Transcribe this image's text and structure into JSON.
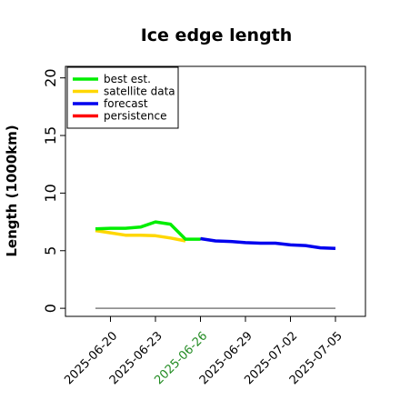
{
  "chart_data": {
    "type": "line",
    "title": "Ice edge length",
    "ylabel": "Length (1000km)",
    "xlabel": "",
    "ylim": [
      -0.7,
      21
    ],
    "yticks": [
      0,
      5,
      10,
      15,
      20
    ],
    "xlim": [
      "2025-06-17",
      "2025-07-07"
    ],
    "xticks": [
      "2025-06-20",
      "2025-06-23",
      "2025-06-26",
      "2025-06-29",
      "2025-07-02",
      "2025-07-05"
    ],
    "highlighted_xtick": "2025-06-26",
    "highlight_color": "#228b22",
    "legend_position": "top-left",
    "grid": false,
    "baseline": {
      "y": 0,
      "x_start": "2025-06-19",
      "x_end": "2025-07-05",
      "color": "#808080"
    },
    "series": [
      {
        "name": "best est.",
        "color": "#00ee00",
        "x": [
          "2025-06-19",
          "2025-06-20",
          "2025-06-21",
          "2025-06-22",
          "2025-06-23",
          "2025-06-24",
          "2025-06-25",
          "2025-06-26"
        ],
        "y": [
          6.9,
          6.95,
          6.95,
          7.05,
          7.5,
          7.3,
          6.0,
          6.0
        ]
      },
      {
        "name": "satellite data",
        "color": "#ffd700",
        "x": [
          "2025-06-19",
          "2025-06-20",
          "2025-06-21",
          "2025-06-22",
          "2025-06-23",
          "2025-06-24",
          "2025-06-25"
        ],
        "y": [
          6.75,
          6.55,
          6.35,
          6.35,
          6.3,
          6.1,
          5.85
        ]
      },
      {
        "name": "forecast",
        "color": "#0000ee",
        "x": [
          "2025-06-26",
          "2025-06-27",
          "2025-06-28",
          "2025-06-29",
          "2025-06-30",
          "2025-07-01",
          "2025-07-02",
          "2025-07-03",
          "2025-07-04",
          "2025-07-05"
        ],
        "y": [
          6.05,
          5.85,
          5.8,
          5.7,
          5.65,
          5.65,
          5.5,
          5.45,
          5.25,
          5.2
        ]
      },
      {
        "name": "persistence",
        "color": "#ff0000",
        "x": [],
        "y": []
      }
    ]
  }
}
